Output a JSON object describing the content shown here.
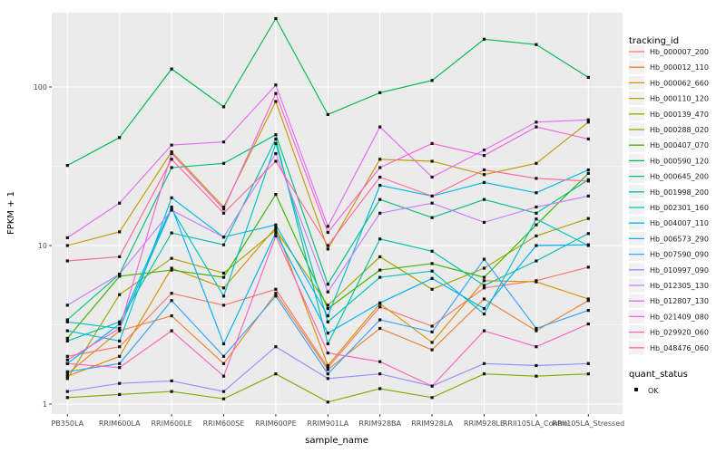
{
  "figure": {
    "y_axis_title": "FPKM + 1",
    "x_axis_title": "sample_name",
    "legend_title": "tracking_id",
    "legend2_title": "quant_status",
    "legend2_item": "OK",
    "colors": {
      "panel_bg": "#EBEBEB",
      "grid": "#FFFFFF",
      "legend_key_bg": "#F2F2F2",
      "tick_text": "#4D4D4D",
      "axis_title_text": "#000000",
      "legend_text": "#1A1A1A",
      "point": "#111111",
      "tick_mark": "#333333"
    }
  },
  "chart_data": {
    "type": "line",
    "x_type": "categorical",
    "title": "",
    "xlabel": "sample_name",
    "ylabel": "FPKM + 1",
    "y_scale": "log10",
    "y_ticks": [
      1,
      10,
      100
    ],
    "y_minor_ticks": [
      3.162,
      31.62
    ],
    "ylim": [
      1,
      294
    ],
    "grid": true,
    "legend_position": "right",
    "legend_title": "tracking_id",
    "point_shape": "filled-black-square",
    "quant_status_legend": {
      "title": "quant_status",
      "items": [
        "OK"
      ]
    },
    "categories": [
      "PB350LA",
      "RRIM600LA",
      "RRIM600LE",
      "RRIM600SE",
      "RRIM600PE",
      "RRIM901LA",
      "RRIM928BA",
      "RRIM928LA",
      "RRIM928LE",
      "RRII105LA_Control",
      "RRII105LA_Stressed"
    ],
    "series": [
      {
        "name": "Hb_000007_200",
        "color": "#F8766D",
        "values": [
          2.0,
          2.3,
          5.0,
          4.2,
          5.3,
          1.7,
          4.1,
          3.1,
          5.4,
          6.0,
          7.3
        ]
      },
      {
        "name": "Hb_000012_110",
        "color": "#EA8331",
        "values": [
          1.55,
          2.9,
          3.6,
          1.8,
          5.0,
          1.65,
          3.0,
          2.2,
          4.6,
          2.9,
          4.5
        ]
      },
      {
        "name": "Hb_000062_660",
        "color": "#D89000",
        "values": [
          1.5,
          2.0,
          7.2,
          5.4,
          13,
          1.75,
          4.3,
          2.45,
          6.0,
          5.9,
          4.6
        ]
      },
      {
        "name": "Hb_000110_120",
        "color": "#C09B00",
        "values": [
          10,
          12.2,
          39,
          17.5,
          81,
          9.5,
          35,
          34,
          28,
          33,
          60
        ]
      },
      {
        "name": "Hb_000139_470",
        "color": "#A3A500",
        "values": [
          1.45,
          4.9,
          8.3,
          6.7,
          12.5,
          4.2,
          8.5,
          5.3,
          7.2,
          11.5,
          14.8
        ]
      },
      {
        "name": "Hb_000288_020",
        "color": "#7CAE00",
        "values": [
          1.1,
          1.15,
          1.2,
          1.08,
          1.55,
          1.03,
          1.25,
          1.1,
          1.55,
          1.5,
          1.55
        ]
      },
      {
        "name": "Hb_000407_070",
        "color": "#39B600",
        "values": [
          2.6,
          6.4,
          7.0,
          6.3,
          21,
          4.0,
          7.0,
          7.7,
          6.3,
          13.5,
          28.5
        ]
      },
      {
        "name": "Hb_000590_120",
        "color": "#00BB4E",
        "values": [
          32,
          48,
          130,
          75,
          270,
          67,
          92,
          110,
          200,
          185,
          115
        ]
      },
      {
        "name": "Hb_000645_200",
        "color": "#00BF7D",
        "values": [
          3.4,
          6.6,
          31,
          33,
          50,
          5.7,
          19.5,
          15,
          19.5,
          16,
          26
        ]
      },
      {
        "name": "Hb_001998_200",
        "color": "#00C1A3",
        "values": [
          2.5,
          3.3,
          12,
          10.1,
          47,
          2.4,
          11,
          9.2,
          5.6,
          8.0,
          11.9
        ]
      },
      {
        "name": "Hb_002301_160",
        "color": "#00BFC4",
        "values": [
          3.3,
          3.0,
          17,
          4.8,
          44,
          3.3,
          6.3,
          6.9,
          3.7,
          14.7,
          10
        ]
      },
      {
        "name": "Hb_004007_110",
        "color": "#00BAE0",
        "values": [
          2.9,
          2.5,
          20,
          11.3,
          13.5,
          3.6,
          24,
          20.5,
          25,
          21.5,
          30
        ]
      },
      {
        "name": "Hb_006573_290",
        "color": "#00B0F6",
        "values": [
          1.8,
          3.2,
          17.5,
          2.4,
          12,
          2.8,
          4.35,
          6.2,
          4.0,
          10,
          10.1
        ]
      },
      {
        "name": "Hb_007590_090",
        "color": "#35A2FF",
        "values": [
          1.6,
          1.8,
          4.5,
          2.0,
          4.8,
          1.55,
          3.4,
          2.85,
          8.2,
          3.0,
          3.9
        ]
      },
      {
        "name": "Hb_010997_090",
        "color": "#9590FF",
        "values": [
          1.2,
          1.35,
          1.4,
          1.2,
          2.3,
          1.45,
          1.55,
          1.3,
          1.8,
          1.75,
          1.8
        ]
      },
      {
        "name": "Hb_012305_130",
        "color": "#C77CFF",
        "values": [
          4.2,
          6.6,
          16.7,
          11.3,
          38,
          5.1,
          16,
          18.5,
          14,
          17.5,
          20.5
        ]
      },
      {
        "name": "Hb_012807_130",
        "color": "#E76BF3",
        "values": [
          11.2,
          18.5,
          43,
          45,
          103,
          13.2,
          56,
          27,
          40,
          60,
          62
        ]
      },
      {
        "name": "Hb_021409_080",
        "color": "#FA62DB",
        "values": [
          1.9,
          3.0,
          38,
          17,
          91,
          12.1,
          31,
          44,
          37,
          56,
          47
        ]
      },
      {
        "name": "Hb_029920_060",
        "color": "#FF62BC",
        "values": [
          1.8,
          1.7,
          2.9,
          1.5,
          11.5,
          2.1,
          1.85,
          1.3,
          2.9,
          2.3,
          3.2
        ]
      },
      {
        "name": "Hb_048476_060",
        "color": "#FF6A98",
        "values": [
          8,
          8.5,
          35,
          16,
          34,
          10,
          27,
          20.5,
          30,
          26.5,
          25.5
        ]
      }
    ]
  }
}
